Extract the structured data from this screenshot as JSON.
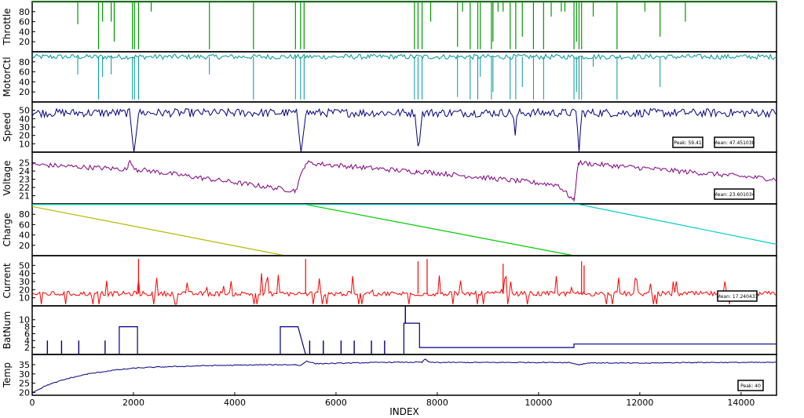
{
  "chart_data": {
    "type": "line",
    "xlabel": "INDEX",
    "x_ticks": [
      "0",
      "2000",
      "4000",
      "6000",
      "8000",
      "10000",
      "12000",
      "14000"
    ],
    "xlim": [
      0,
      14700
    ],
    "grid": false,
    "panels": [
      {
        "ylabel": "Throttle",
        "yticks": [
          "20",
          "40",
          "60",
          "80"
        ],
        "ylim": [
          0,
          100
        ],
        "color": "#009900",
        "series": [
          {
            "kind": "constant_with_drops",
            "level": 99,
            "drops": [
              [
                900,
                55
              ],
              [
                1310,
                5
              ],
              [
                1390,
                60
              ],
              [
                1560,
                60
              ],
              [
                1620,
                20
              ],
              [
                1980,
                5
              ],
              [
                2020,
                5
              ],
              [
                2100,
                5
              ],
              [
                2350,
                80
              ],
              [
                3500,
                5
              ],
              [
                4370,
                5
              ],
              [
                5200,
                5
              ],
              [
                5300,
                5
              ],
              [
                5370,
                5
              ],
              [
                7550,
                5
              ],
              [
                7620,
                5
              ],
              [
                7700,
                5
              ],
              [
                7870,
                60
              ],
              [
                8400,
                10
              ],
              [
                8500,
                80
              ],
              [
                8650,
                5
              ],
              [
                8800,
                5
              ],
              [
                8850,
                5
              ],
              [
                9070,
                5
              ],
              [
                9100,
                20
              ],
              [
                9200,
                80
              ],
              [
                9300,
                80
              ],
              [
                9440,
                5
              ],
              [
                9550,
                5
              ],
              [
                9680,
                30
              ],
              [
                9900,
                5
              ],
              [
                10100,
                5
              ],
              [
                10250,
                70
              ],
              [
                10450,
                80
              ],
              [
                10520,
                80
              ],
              [
                10700,
                5
              ],
              [
                10750,
                20
              ],
              [
                10800,
                5
              ],
              [
                10850,
                5
              ],
              [
                11080,
                70
              ],
              [
                11550,
                5
              ],
              [
                12100,
                80
              ],
              [
                12400,
                30
              ],
              [
                12900,
                60
              ]
            ]
          }
        ]
      },
      {
        "ylabel": "MotorCtl",
        "yticks": [
          "20",
          "40",
          "60",
          "80"
        ],
        "ylim": [
          0,
          100
        ],
        "color": "#009999",
        "series": [
          {
            "kind": "noisy_with_drops",
            "level": 90,
            "drops": [
              [
                900,
                55
              ],
              [
                1310,
                5
              ],
              [
                1390,
                50
              ],
              [
                1560,
                55
              ],
              [
                1980,
                5
              ],
              [
                2020,
                5
              ],
              [
                2100,
                5
              ],
              [
                3500,
                55
              ],
              [
                4370,
                5
              ],
              [
                5200,
                5
              ],
              [
                5300,
                5
              ],
              [
                5370,
                5
              ],
              [
                7550,
                5
              ],
              [
                7620,
                5
              ],
              [
                7700,
                5
              ],
              [
                8400,
                10
              ],
              [
                8650,
                5
              ],
              [
                8800,
                5
              ],
              [
                8850,
                50
              ],
              [
                9070,
                5
              ],
              [
                9100,
                20
              ],
              [
                9440,
                5
              ],
              [
                9550,
                5
              ],
              [
                9680,
                30
              ],
              [
                9900,
                5
              ],
              [
                10100,
                5
              ],
              [
                10700,
                5
              ],
              [
                10750,
                20
              ],
              [
                10800,
                5
              ],
              [
                10850,
                5
              ],
              [
                11080,
                70
              ],
              [
                11550,
                5
              ],
              [
                12400,
                30
              ]
            ]
          }
        ]
      },
      {
        "ylabel": "Speed",
        "yticks": [
          "10",
          "20",
          "30",
          "40",
          "50"
        ],
        "ylim": [
          0,
          60
        ],
        "color": "#000080",
        "annotations": [
          "Peak: 59.41",
          "Mean: 47.451038"
        ],
        "series": [
          {
            "kind": "noisy_with_dips",
            "level": 47,
            "dips": [
              [
                1920,
                2100,
                0
              ],
              [
                5220,
                5400,
                0
              ],
              [
                7560,
                7700,
                0
              ],
              [
                10750,
                10850,
                0
              ],
              [
                9500,
                9580,
                20
              ]
            ]
          }
        ]
      },
      {
        "ylabel": "Voltage",
        "yticks": [
          "21",
          "22",
          "23",
          "24",
          "25"
        ],
        "ylim": [
          20,
          26.3
        ],
        "color": "#800080",
        "annotations": [
          "Mean: 23.601034"
        ],
        "series": [
          {
            "kind": "sawtooth",
            "segments": [
              [
                0,
                1900,
                24.8,
                24.2
              ],
              [
                1900,
                2100,
                25.2,
                24.0
              ],
              [
                2100,
                5200,
                24.2,
                21.6
              ],
              [
                5200,
                5400,
                21.6,
                25.0
              ],
              [
                5400,
                7600,
                25.0,
                23.9
              ],
              [
                7600,
                10400,
                24.0,
                22.3
              ],
              [
                10400,
                10700,
                22.2,
                20.4
              ],
              [
                10700,
                10800,
                20.4,
                25.8
              ],
              [
                10800,
                14700,
                25.0,
                23.0
              ]
            ]
          }
        ]
      },
      {
        "ylabel": "Charge",
        "yticks": [
          "20",
          "40",
          "60",
          "80"
        ],
        "ylim": [
          0,
          100
        ],
        "series": [
          {
            "color": "#b8b800",
            "points": [
              [
                0,
                95
              ],
              [
                5000,
                0
              ],
              [
                14700,
                0
              ]
            ]
          },
          {
            "color": "#00cc00",
            "points": [
              [
                0,
                99
              ],
              [
                5400,
                99
              ],
              [
                10700,
                0
              ],
              [
                14700,
                0
              ]
            ]
          },
          {
            "color": "#00cccc",
            "points": [
              [
                0,
                99
              ],
              [
                10800,
                99
              ],
              [
                14700,
                22
              ]
            ]
          }
        ]
      },
      {
        "ylabel": "Current",
        "yticks": [
          "10",
          "20",
          "30",
          "40",
          "50"
        ],
        "ylim": [
          0,
          62
        ],
        "color": "#ff0000",
        "annotations": [
          "Mean: 17.240433"
        ],
        "series": [
          {
            "kind": "noisy_spikes",
            "level": 15,
            "spikes": [
              [
                2100,
                58
              ],
              [
                5400,
                58
              ],
              [
                7620,
                55
              ],
              [
                7800,
                58
              ],
              [
                10850,
                55
              ],
              [
                10900,
                50
              ],
              [
                9300,
                52
              ]
            ]
          }
        ]
      },
      {
        "ylabel": "BatNum",
        "yticks": [
          "2",
          "4",
          "6",
          "8",
          "10"
        ],
        "ylim": [
          0,
          14
        ],
        "color": "#000080",
        "series": [
          {
            "kind": "step",
            "points": [
              [
                0,
                0
              ],
              [
                1720,
                0
              ],
              [
                1720,
                8
              ],
              [
                2080,
                8
              ],
              [
                2080,
                0
              ],
              [
                4900,
                0
              ],
              [
                4900,
                8
              ],
              [
                5250,
                8
              ],
              [
                5400,
                0
              ],
              [
                7340,
                0
              ],
              [
                7340,
                9
              ],
              [
                7650,
                9
              ],
              [
                7650,
                2
              ],
              [
                10700,
                2
              ],
              [
                10700,
                3
              ],
              [
                14700,
                3
              ]
            ],
            "ticks": [
              [
                300,
                4
              ],
              [
                580,
                4
              ],
              [
                920,
                4
              ],
              [
                1440,
                4
              ],
              [
                5480,
                4
              ],
              [
                5750,
                4
              ],
              [
                6100,
                4
              ],
              [
                6360,
                4
              ],
              [
                6700,
                4
              ],
              [
                6960,
                4
              ]
            ],
            "spike": [
              7370,
              14
            ]
          }
        ]
      },
      {
        "ylabel": "Temp",
        "yticks": [
          "20",
          "25",
          "30",
          "35"
        ],
        "ylim": [
          18.5,
          40.5
        ],
        "color": "#000080",
        "annotations": [
          "Peak: 40"
        ],
        "series": [
          {
            "kind": "curve",
            "points": [
              [
                0,
                20
              ],
              [
                300,
                24
              ],
              [
                700,
                27.5
              ],
              [
                1100,
                30
              ],
              [
                1600,
                32
              ],
              [
                2100,
                33.3
              ],
              [
                2600,
                33.8
              ],
              [
                3500,
                34.5
              ],
              [
                4500,
                34.9
              ],
              [
                5200,
                35.0
              ],
              [
                5300,
                34.5
              ],
              [
                5420,
                37.0
              ],
              [
                5600,
                35.5
              ],
              [
                7000,
                36.3
              ],
              [
                7700,
                36.3
              ],
              [
                7760,
                38.0
              ],
              [
                7850,
                36.2
              ],
              [
                10600,
                36.2
              ],
              [
                10800,
                35.0
              ],
              [
                11000,
                36.0
              ],
              [
                12000,
                35.8
              ],
              [
                13000,
                36.2
              ],
              [
                14700,
                36.2
              ]
            ]
          }
        ]
      }
    ]
  }
}
